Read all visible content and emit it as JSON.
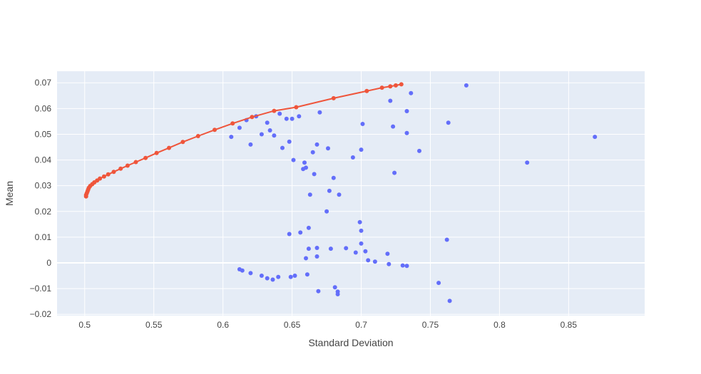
{
  "chart_data": {
    "type": "scatter",
    "title": "",
    "xlabel": "Standard Deviation",
    "ylabel": "Mean",
    "xlim": [
      0.48,
      0.905
    ],
    "ylim": [
      -0.0205,
      0.0745
    ],
    "x_ticks": [
      0.5,
      0.55,
      0.6,
      0.65,
      0.7,
      0.75,
      0.8,
      0.85
    ],
    "x_tick_labels": [
      "0.5",
      "0.55",
      "0.6",
      "0.65",
      "0.7",
      "0.75",
      "0.8",
      "0.85"
    ],
    "y_ticks": [
      -0.02,
      -0.01,
      0,
      0.01,
      0.02,
      0.03,
      0.04,
      0.05,
      0.06,
      0.07
    ],
    "y_tick_labels": [
      "−0.02",
      "−0.01",
      "0",
      "0.01",
      "0.02",
      "0.03",
      "0.04",
      "0.05",
      "0.06",
      "0.07"
    ],
    "grid": true,
    "legend": "none",
    "colors": {
      "plot_bg": "#e5ecf6",
      "grid": "#ffffff",
      "portfolios": "#636efa",
      "frontier": "#ef553b",
      "text": "#444444"
    },
    "series": [
      {
        "type": "scatter",
        "color": "#636efa",
        "points": [
          [
            0.776,
            0.069
          ],
          [
            0.736,
            0.066
          ],
          [
            0.721,
            0.063
          ],
          [
            0.733,
            0.059
          ],
          [
            0.67,
            0.0585
          ],
          [
            0.655,
            0.057
          ],
          [
            0.65,
            0.056
          ],
          [
            0.701,
            0.054
          ],
          [
            0.763,
            0.0545
          ],
          [
            0.723,
            0.053
          ],
          [
            0.733,
            0.0505
          ],
          [
            0.869,
            0.049
          ],
          [
            0.637,
            0.0495
          ],
          [
            0.742,
            0.0435
          ],
          [
            0.7,
            0.044
          ],
          [
            0.694,
            0.041
          ],
          [
            0.82,
            0.039
          ],
          [
            0.676,
            0.0445
          ],
          [
            0.668,
            0.046
          ],
          [
            0.724,
            0.035
          ],
          [
            0.68,
            0.033
          ],
          [
            0.677,
            0.028
          ],
          [
            0.684,
            0.0265
          ],
          [
            0.675,
            0.02
          ],
          [
            0.699,
            0.0158
          ],
          [
            0.7,
            0.0125
          ],
          [
            0.7,
            0.0075
          ],
          [
            0.703,
            0.0045
          ],
          [
            0.719,
            0.0035
          ],
          [
            0.71,
            0.0005
          ],
          [
            0.72,
            -0.0005
          ],
          [
            0.733,
            -0.0012
          ],
          [
            0.762,
            0.009
          ],
          [
            0.756,
            -0.0078
          ],
          [
            0.764,
            -0.0148
          ],
          [
            0.681,
            -0.0095
          ],
          [
            0.683,
            -0.0112
          ],
          [
            0.683,
            -0.0122
          ],
          [
            0.669,
            -0.011
          ],
          [
            0.689,
            0.0057
          ],
          [
            0.678,
            0.0055
          ],
          [
            0.668,
            0.0058
          ],
          [
            0.662,
            0.0055
          ],
          [
            0.661,
            -0.0045
          ],
          [
            0.652,
            -0.005
          ],
          [
            0.649,
            -0.0055
          ],
          [
            0.64,
            -0.0055
          ],
          [
            0.636,
            -0.0065
          ],
          [
            0.632,
            -0.006
          ],
          [
            0.62,
            -0.004
          ],
          [
            0.614,
            -0.003
          ],
          [
            0.612,
            -0.0025
          ],
          [
            0.628,
            -0.005
          ],
          [
            0.66,
            0.0018
          ],
          [
            0.668,
            0.0025
          ],
          [
            0.696,
            0.004
          ],
          [
            0.705,
            0.001
          ],
          [
            0.73,
            -0.001
          ],
          [
            0.662,
            0.0136
          ],
          [
            0.656,
            0.0118
          ],
          [
            0.648,
            0.0112
          ],
          [
            0.663,
            0.0265
          ],
          [
            0.66,
            0.037
          ],
          [
            0.666,
            0.0345
          ],
          [
            0.658,
            0.0365
          ],
          [
            0.651,
            0.04
          ],
          [
            0.659,
            0.039
          ],
          [
            0.665,
            0.043
          ],
          [
            0.643,
            0.0447
          ],
          [
            0.648,
            0.0471
          ],
          [
            0.646,
            0.056
          ],
          [
            0.641,
            0.058
          ],
          [
            0.632,
            0.0545
          ],
          [
            0.624,
            0.057
          ],
          [
            0.617,
            0.0555
          ],
          [
            0.612,
            0.0525
          ],
          [
            0.606,
            0.049
          ],
          [
            0.62,
            0.046
          ],
          [
            0.628,
            0.05
          ],
          [
            0.634,
            0.0515
          ]
        ]
      },
      {
        "type": "line+markers",
        "color": "#ef553b",
        "points": [
          [
            0.501,
            0.0258
          ],
          [
            0.501,
            0.0264
          ],
          [
            0.5015,
            0.0271
          ],
          [
            0.502,
            0.0278
          ],
          [
            0.5025,
            0.0285
          ],
          [
            0.503,
            0.0292
          ],
          [
            0.504,
            0.0299
          ],
          [
            0.5055,
            0.0306
          ],
          [
            0.507,
            0.0313
          ],
          [
            0.509,
            0.032
          ],
          [
            0.511,
            0.0328
          ],
          [
            0.514,
            0.0336
          ],
          [
            0.517,
            0.0344
          ],
          [
            0.521,
            0.0354
          ],
          [
            0.526,
            0.0366
          ],
          [
            0.531,
            0.0378
          ],
          [
            0.537,
            0.0392
          ],
          [
            0.544,
            0.0408
          ],
          [
            0.552,
            0.0427
          ],
          [
            0.561,
            0.0447
          ],
          [
            0.571,
            0.047
          ],
          [
            0.582,
            0.0493
          ],
          [
            0.594,
            0.0517
          ],
          [
            0.607,
            0.0542
          ],
          [
            0.621,
            0.0567
          ],
          [
            0.637,
            0.0591
          ],
          [
            0.653,
            0.0605
          ],
          [
            0.68,
            0.064
          ],
          [
            0.704,
            0.0668
          ],
          [
            0.715,
            0.0681
          ],
          [
            0.721,
            0.0686
          ],
          [
            0.725,
            0.069
          ],
          [
            0.729,
            0.0694
          ]
        ]
      }
    ]
  }
}
